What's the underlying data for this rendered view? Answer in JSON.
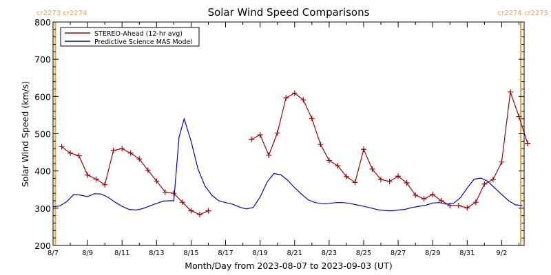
{
  "chart_data": {
    "type": "line",
    "title": "Solar Wind Speed Comparisons",
    "xlabel": "Month/Day from 2023-08-07 to 2023-09-03 (UT)",
    "ylabel": "Solar Wind Speed (km/s)",
    "xlim": [
      0,
      27.3
    ],
    "ylim": [
      200,
      800
    ],
    "y_ticks": [
      200,
      300,
      400,
      500,
      600,
      700,
      800
    ],
    "x_ticks": [
      {
        "day": 0,
        "label": "8/7"
      },
      {
        "day": 2,
        "label": "8/9"
      },
      {
        "day": 4,
        "label": "8/11"
      },
      {
        "day": 6,
        "label": "8/13"
      },
      {
        "day": 8,
        "label": "8/15"
      },
      {
        "day": 10,
        "label": "8/17"
      },
      {
        "day": 12,
        "label": "8/19"
      },
      {
        "day": 14,
        "label": "8/21"
      },
      {
        "day": 16,
        "label": "8/23"
      },
      {
        "day": 18,
        "label": "8/25"
      },
      {
        "day": 20,
        "label": "8/27"
      },
      {
        "day": 22,
        "label": "8/29"
      },
      {
        "day": 24,
        "label": "8/31"
      },
      {
        "day": 26,
        "label": "9/2"
      }
    ],
    "carrington_markers": [
      {
        "day": 0.13,
        "label": "cr2273 cr2274",
        "side": "left",
        "color": "#FFA028"
      },
      {
        "day": 27.1,
        "label": "cr2274 cr2275",
        "side": "right",
        "color": "#FFA028"
      }
    ],
    "legend_position": "top-left",
    "grid": false,
    "series": [
      {
        "name": "STEREO-Ahead (12-hr avg)",
        "color": "#A00000",
        "marker": "+",
        "segments": [
          {
            "x": [
              0.5,
              1.0,
              1.5,
              2.0,
              2.5,
              3.0,
              3.5,
              4.0,
              4.5,
              5.0,
              5.5,
              6.0,
              6.5,
              7.0,
              7.5,
              8.0,
              8.5,
              9.0
            ],
            "y": [
              465,
              448,
              441,
              389,
              378,
              363,
              455,
              460,
              448,
              432,
              402,
              373,
              343,
              340,
              316,
              293,
              283,
              293
            ]
          },
          {
            "x": [
              11.5,
              12.0,
              12.5,
              13.0,
              13.5,
              14.0,
              14.5,
              15.0,
              15.5,
              16.0,
              16.5,
              17.0,
              17.5,
              18.0,
              18.5,
              19.0,
              19.5,
              20.0,
              20.5,
              21.0,
              21.5,
              22.0,
              22.5,
              23.0,
              23.5,
              24.0,
              24.5,
              25.0,
              25.5,
              26.0,
              26.5,
              27.0,
              27.5
            ],
            "y": [
              485,
              497,
              442,
              502,
              596,
              609,
              591,
              541,
              471,
              428,
              414,
              385,
              369,
              458,
              405,
              377,
              372,
              386,
              368,
              335,
              325,
              337,
              320,
              307,
              307,
              301,
              316,
              365,
              377,
              424,
              612,
              546,
              474
            ]
          }
        ]
      },
      {
        "name": "Predictive Science MAS Model",
        "color": "#0000CC",
        "marker": "none",
        "x": [
          0.0,
          0.4,
          0.8,
          1.2,
          1.6,
          2.0,
          2.4,
          2.8,
          3.2,
          3.6,
          4.0,
          4.4,
          4.8,
          5.2,
          5.6,
          6.0,
          6.4,
          6.7,
          7.0,
          7.3,
          7.6,
          8.0,
          8.4,
          8.8,
          9.2,
          9.6,
          10.0,
          10.4,
          10.8,
          11.2,
          11.6,
          12.0,
          12.4,
          12.8,
          13.2,
          13.6,
          14.0,
          14.4,
          14.8,
          15.2,
          15.6,
          16.0,
          16.4,
          16.8,
          17.2,
          17.6,
          18.0,
          18.4,
          18.8,
          19.2,
          19.6,
          20.0,
          20.4,
          20.8,
          21.2,
          21.6,
          22.0,
          22.4,
          22.8,
          23.2,
          23.6,
          24.0,
          24.4,
          24.8,
          25.2,
          25.6,
          26.0,
          26.4,
          26.8,
          27.2
        ],
        "y": [
          304,
          306,
          318,
          337,
          335,
          331,
          339,
          338,
          329,
          316,
          305,
          297,
          295,
          299,
          306,
          313,
          319,
          320,
          320,
          490,
          540,
          480,
          405,
          360,
          335,
          320,
          315,
          311,
          303,
          298,
          302,
          330,
          370,
          393,
          390,
          375,
          355,
          338,
          322,
          315,
          312,
          313,
          315,
          315,
          313,
          309,
          305,
          301,
          296,
          294,
          293,
          295,
          297,
          302,
          305,
          308,
          314,
          315,
          311,
          313,
          328,
          354,
          378,
          381,
          372,
          354,
          337,
          320,
          309,
          307
        ]
      }
    ]
  }
}
